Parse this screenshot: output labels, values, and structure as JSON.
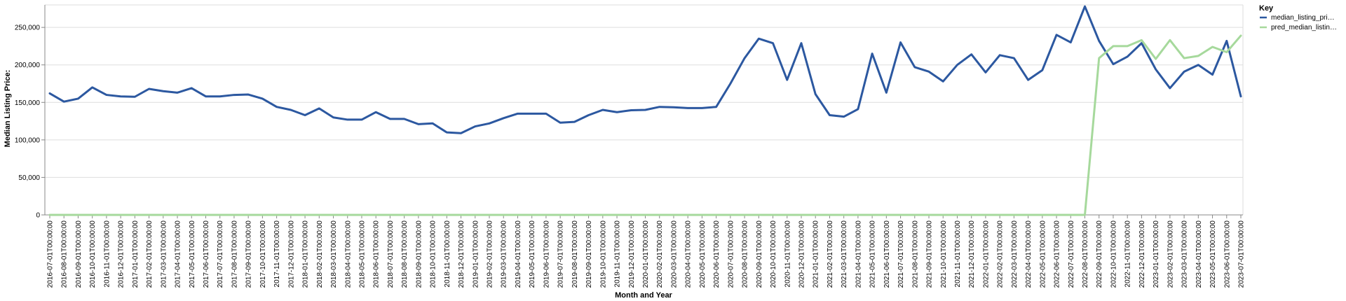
{
  "chart_data": {
    "type": "line",
    "xlabel": "Month and Year",
    "ylabel": "Median Listing Price:",
    "ylim": [
      0,
      280000
    ],
    "yticks": [
      0,
      50000,
      100000,
      150000,
      200000,
      250000
    ],
    "ytick_labels": [
      "0",
      "50,000",
      "100,000",
      "150,000",
      "200,000",
      "250,000"
    ],
    "grid": true,
    "legend": {
      "title": "Key",
      "placement": "right",
      "entries": [
        "median_listing_pri…",
        "pred_median_listin…"
      ]
    },
    "x": [
      "2016-07-01T00:00:00",
      "2016-08-01T00:00:00",
      "2016-09-01T00:00:00",
      "2016-10-01T00:00:00",
      "2016-11-01T00:00:00",
      "2016-12-01T00:00:00",
      "2017-01-01T00:00:00",
      "2017-02-01T00:00:00",
      "2017-03-01T00:00:00",
      "2017-04-01T00:00:00",
      "2017-05-01T00:00:00",
      "2017-06-01T00:00:00",
      "2017-07-01T00:00:00",
      "2017-08-01T00:00:00",
      "2017-09-01T00:00:00",
      "2017-10-01T00:00:00",
      "2017-11-01T00:00:00",
      "2017-12-01T00:00:00",
      "2018-01-01T00:00:00",
      "2018-02-01T00:00:00",
      "2018-03-01T00:00:00",
      "2018-04-01T00:00:00",
      "2018-05-01T00:00:00",
      "2018-06-01T00:00:00",
      "2018-07-01T00:00:00",
      "2018-08-01T00:00:00",
      "2018-09-01T00:00:00",
      "2018-10-01T00:00:00",
      "2018-11-01T00:00:00",
      "2018-12-01T00:00:00",
      "2019-01-01T00:00:00",
      "2019-02-01T00:00:00",
      "2019-03-01T00:00:00",
      "2019-04-01T00:00:00",
      "2019-05-01T00:00:00",
      "2019-06-01T00:00:00",
      "2019-07-01T00:00:00",
      "2019-08-01T00:00:00",
      "2019-09-01T00:00:00",
      "2019-10-01T00:00:00",
      "2019-11-01T00:00:00",
      "2019-12-01T00:00:00",
      "2020-01-01T00:00:00",
      "2020-02-01T00:00:00",
      "2020-03-01T00:00:00",
      "2020-04-01T00:00:00",
      "2020-05-01T00:00:00",
      "2020-06-01T00:00:00",
      "2020-07-01T00:00:00",
      "2020-08-01T00:00:00",
      "2020-09-01T00:00:00",
      "2020-10-01T00:00:00",
      "2020-11-01T00:00:00",
      "2020-12-01T00:00:00",
      "2021-01-01T00:00:00",
      "2021-02-01T00:00:00",
      "2021-03-01T00:00:00",
      "2021-04-01T00:00:00",
      "2021-05-01T00:00:00",
      "2021-06-01T00:00:00",
      "2021-07-01T00:00:00",
      "2021-08-01T00:00:00",
      "2021-09-01T00:00:00",
      "2021-10-01T00:00:00",
      "2021-11-01T00:00:00",
      "2021-12-01T00:00:00",
      "2022-01-01T00:00:00",
      "2022-02-01T00:00:00",
      "2022-03-01T00:00:00",
      "2022-04-01T00:00:00",
      "2022-05-01T00:00:00",
      "2022-06-01T00:00:00",
      "2022-07-01T00:00:00",
      "2022-08-01T00:00:00",
      "2022-09-01T00:00:00",
      "2022-10-01T00:00:00",
      "2022-11-01T00:00:00",
      "2022-12-01T00:00:00",
      "2023-01-01T00:00:00",
      "2023-02-01T00:00:00",
      "2023-03-01T00:00:00",
      "2023-04-01T00:00:00",
      "2023-05-01T00:00:00",
      "2023-06-01T00:00:00",
      "2023-07-01T00:00:00"
    ],
    "series": [
      {
        "name": "median_listing_pri…",
        "color": "#2c58a0",
        "values": [
          162000,
          151000,
          155000,
          170000,
          160000,
          158000,
          157500,
          168000,
          165000,
          163000,
          169000,
          158000,
          158000,
          160000,
          160500,
          155000,
          144000,
          140000,
          133000,
          142000,
          130000,
          127000,
          127000,
          137000,
          128000,
          128000,
          121000,
          122000,
          110000,
          109000,
          118000,
          122000,
          129000,
          135000,
          135000,
          135000,
          123000,
          124000,
          133000,
          140000,
          137000,
          139500,
          140000,
          144000,
          143500,
          142500,
          142500,
          144000,
          175000,
          209000,
          235000,
          229000,
          180000,
          229000,
          161000,
          133000,
          131000,
          141000,
          215000,
          163000,
          230000,
          197000,
          191000,
          178000,
          200000,
          214000,
          190000,
          213000,
          209000,
          180000,
          193000,
          240000,
          230000,
          278000,
          232000,
          201000,
          211000,
          229000,
          194000,
          169000,
          191000,
          200000,
          187000,
          232000,
          158000
        ]
      },
      {
        "name": "pred_median_listin…",
        "color": "#a6d99c",
        "values": [
          0,
          0,
          0,
          0,
          0,
          0,
          0,
          0,
          0,
          0,
          0,
          0,
          0,
          0,
          0,
          0,
          0,
          0,
          0,
          0,
          0,
          0,
          0,
          0,
          0,
          0,
          0,
          0,
          0,
          0,
          0,
          0,
          0,
          0,
          0,
          0,
          0,
          0,
          0,
          0,
          0,
          0,
          0,
          0,
          0,
          0,
          0,
          0,
          0,
          0,
          0,
          0,
          0,
          0,
          0,
          0,
          0,
          0,
          0,
          0,
          0,
          0,
          0,
          0,
          0,
          0,
          0,
          0,
          0,
          0,
          0,
          0,
          0,
          0,
          209000,
          225000,
          225000,
          233000,
          208000,
          233000,
          209000,
          212000,
          224000,
          217000,
          239000
        ]
      }
    ]
  }
}
